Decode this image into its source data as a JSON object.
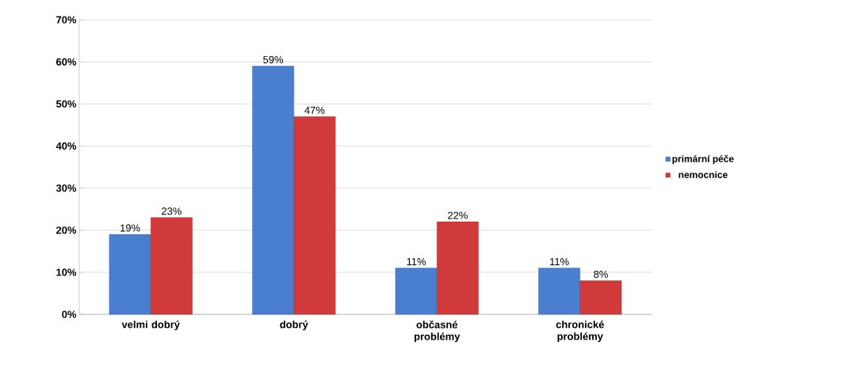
{
  "chart_data": {
    "type": "bar",
    "categories": [
      "velmi dobrý",
      "dobrý",
      "občasné problémy",
      "chronické problémy"
    ],
    "series": [
      {
        "name": "primární péče",
        "color": "#4a7fd0",
        "values": [
          19,
          59,
          11,
          11
        ],
        "value_labels": [
          "19%",
          "59%",
          "11%",
          "11%"
        ]
      },
      {
        "name": "nemocnice",
        "color": "#d03a3a",
        "values": [
          23,
          47,
          22,
          8
        ],
        "value_labels": [
          "23%",
          "47%",
          "22%",
          "8%"
        ]
      }
    ],
    "ylim": [
      0,
      70
    ],
    "yticks": [
      {
        "value": 0,
        "label": "0%"
      },
      {
        "value": 10,
        "label": "10%"
      },
      {
        "value": 20,
        "label": "20%"
      },
      {
        "value": 30,
        "label": "30%"
      },
      {
        "value": 40,
        "label": "40%"
      },
      {
        "value": 50,
        "label": "50%"
      },
      {
        "value": 60,
        "label": "60%"
      },
      {
        "value": 70,
        "label": "70%"
      }
    ],
    "grid": "y",
    "legend": "right"
  }
}
